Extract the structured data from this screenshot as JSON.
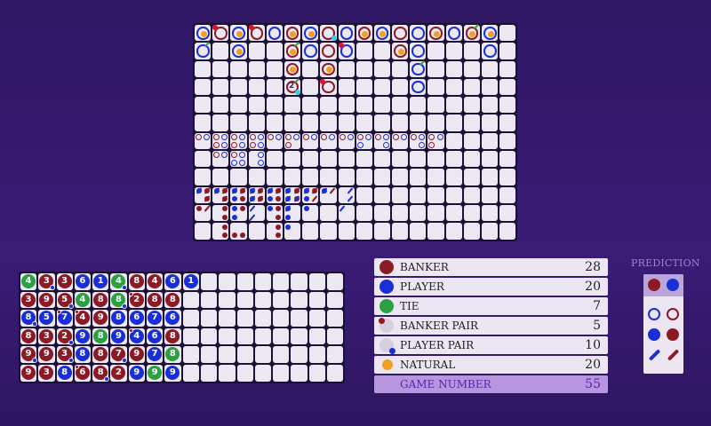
{
  "colors": {
    "banker": "#8c1a24",
    "player": "#1a2ed8",
    "tie": "#2aa040",
    "natural": "#f0a020",
    "banker_pair_mark": "#e0102a",
    "player_pair_mark": "#2ad4f0"
  },
  "big_road": [
    [
      {
        "r": "B",
        "nat": true
      },
      {
        "r": "B",
        "tie": 1
      }
    ],
    [
      {
        "r": "R",
        "bp": true
      }
    ],
    [
      {
        "r": "B",
        "nat": true
      },
      {
        "r": "B",
        "nat": true
      }
    ],
    [
      {
        "r": "R",
        "bp": true
      }
    ],
    [
      {
        "r": "B"
      }
    ],
    [
      {
        "r": "R",
        "nat": true
      },
      {
        "r": "R",
        "nat": true,
        "tie": 1
      },
      {
        "r": "R",
        "nat": true
      },
      {
        "r": "R",
        "tie": 2,
        "pp": true
      }
    ],
    [
      {
        "r": "B",
        "nat": true
      },
      {
        "r": "B"
      }
    ],
    [
      {
        "r": "R",
        "pp": true
      },
      {
        "r": "R"
      },
      {
        "r": "R",
        "nat": true
      },
      {
        "r": "R",
        "bp": true
      }
    ],
    [
      {
        "r": "B"
      },
      {
        "r": "B",
        "bp": true
      }
    ],
    [
      {
        "r": "R",
        "nat": true
      }
    ],
    [
      {
        "r": "B",
        "nat": true
      }
    ],
    [
      {
        "r": "R"
      },
      {
        "r": "R",
        "nat": true
      }
    ],
    [
      {
        "r": "B"
      },
      {
        "r": "B"
      },
      {
        "r": "B",
        "tie": 1
      },
      {
        "r": "B"
      }
    ],
    [
      {
        "r": "R",
        "nat": true
      }
    ],
    [
      {
        "r": "B"
      }
    ],
    [
      {
        "r": "R",
        "nat": true,
        "tie": 1
      }
    ],
    [
      {
        "r": "B",
        "nat": true
      },
      {
        "r": "B"
      }
    ]
  ],
  "big_eye_road": [
    "RBRBRBRBRBRBRBRBRBRBRBRBRBRB........",
    "..RBRBRB..R.......B..B...BR.........",
    "..RBRB.B............................",
    "....BB.B............................"
  ],
  "small_road": [
    "BRBRBRBRBRBRBRB.",
    ".R.RBRBRBRBRB...",
    "R..RBR..BRB.B...",
    "...RB....RB.....",
    "...R.....RB.....",
    "...RRR...R......"
  ],
  "cockroach_road": [
    "BRBRBRBRBRBRBRBR.B",
    ".R.R..BR..BB.R...B",
    ".R....B...B.....B.",
    "......B..........."
  ],
  "bead_plate": {
    "rows": [
      [
        [
          "T",
          4
        ],
        [
          "B",
          3,
          "pp"
        ],
        [
          "B",
          3
        ],
        [
          "P",
          6
        ],
        [
          "P",
          1
        ],
        [
          "T",
          4,
          "pp"
        ],
        [
          "B",
          8
        ],
        [
          "B",
          4
        ],
        [
          "P",
          6
        ],
        [
          "P",
          1
        ]
      ],
      [
        [
          "B",
          3
        ],
        [
          "B",
          9
        ],
        [
          "B",
          5,
          "pp"
        ],
        [
          "T",
          4
        ],
        [
          "B",
          8
        ],
        [
          "T",
          8,
          "pp"
        ],
        [
          "B",
          2,
          "bp"
        ],
        [
          "B",
          8
        ],
        [
          "B",
          8
        ]
      ],
      [
        [
          "P",
          8,
          "pp"
        ],
        [
          "P",
          5
        ],
        [
          "P",
          7,
          "bp"
        ],
        [
          "B",
          4,
          "bp"
        ],
        [
          "B",
          9
        ],
        [
          "P",
          8
        ],
        [
          "P",
          6
        ],
        [
          "P",
          7
        ],
        [
          "P",
          6
        ]
      ],
      [
        [
          "B",
          8
        ],
        [
          "B",
          3
        ],
        [
          "B",
          2,
          "pp"
        ],
        [
          "P",
          9
        ],
        [
          "T",
          8
        ],
        [
          "P",
          9
        ],
        [
          "P",
          4,
          "bp"
        ],
        [
          "P",
          6
        ],
        [
          "B",
          8
        ]
      ],
      [
        [
          "B",
          9,
          "pp"
        ],
        [
          "B",
          9
        ],
        [
          "B",
          3,
          "pp"
        ],
        [
          "P",
          8
        ],
        [
          "B",
          8
        ],
        [
          "B",
          7,
          "pp"
        ],
        [
          "B",
          9
        ],
        [
          "P",
          7
        ],
        [
          "T",
          8
        ]
      ],
      [
        [
          "B",
          9
        ],
        [
          "B",
          3
        ],
        [
          "P",
          8
        ],
        [
          "B",
          6,
          "bp"
        ],
        [
          "B",
          8,
          "pp"
        ],
        [
          "B",
          2
        ],
        [
          "P",
          9
        ],
        [
          "T",
          9
        ],
        [
          "P",
          9
        ]
      ]
    ]
  },
  "stats": [
    {
      "label": "BANKER",
      "value": "28",
      "icon": "banker-dot"
    },
    {
      "label": "PLAYER",
      "value": "20",
      "icon": "player-dot"
    },
    {
      "label": "TIE",
      "value": "7",
      "icon": "tie-dot"
    },
    {
      "label": "BANKER PAIR",
      "value": "5",
      "icon": "banker-pair"
    },
    {
      "label": "PLAYER PAIR",
      "value": "10",
      "icon": "player-pair"
    },
    {
      "label": "NATURAL",
      "value": "20",
      "icon": "natural-dot"
    }
  ],
  "game_number": {
    "label": "GAME NUMBER",
    "value": "55"
  },
  "prediction": {
    "title": "PREDICTION"
  }
}
